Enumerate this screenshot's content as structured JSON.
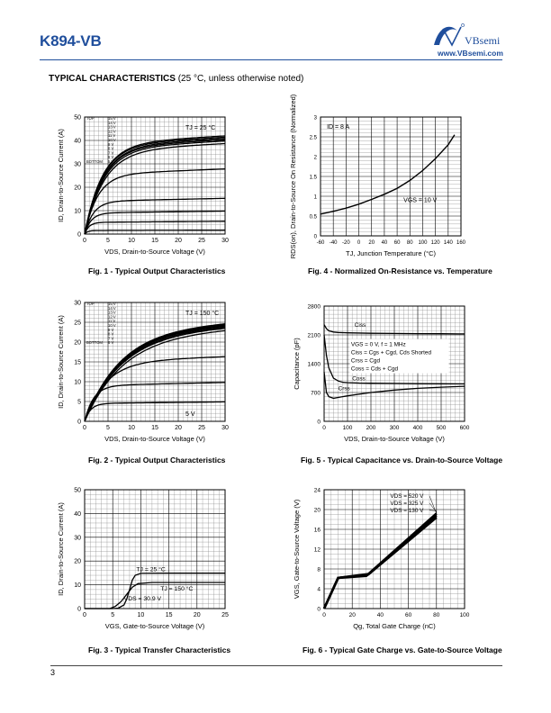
{
  "header": {
    "part_number": "K894-VB",
    "brand": "VBsemi",
    "url": "www.VBsemi.com"
  },
  "section": {
    "title": "TYPICAL CHARACTERISTICS",
    "subtitle": "(25 °C, unless otherwise noted)"
  },
  "footer": {
    "page_number": "3"
  },
  "chart_data": [
    {
      "id": "fig1",
      "type": "line",
      "caption": "Fig. 1 - Typical Output Characteristics",
      "xlabel": "VDS, Drain-to-Source Voltage (V)",
      "ylabel": "ID, Drain-to-Source Current (A)",
      "xlim": [
        0,
        30
      ],
      "ylim": [
        0,
        50
      ],
      "xticks": [
        0,
        5,
        10,
        15,
        20,
        25,
        30
      ],
      "yticks": [
        0,
        10,
        20,
        30,
        40,
        50
      ],
      "annotation": "TJ = 25 °C",
      "legend_top": "TOP",
      "legend_bottom": "BOTTOM",
      "legend_entries": [
        "15 V",
        "14 V",
        "13 V",
        "12 V",
        "11 V",
        "10 V",
        "9 V",
        "8 V",
        "7 V",
        "6 V",
        "5 V"
      ],
      "series": [
        {
          "sat": 38.5,
          "knee": 6.0
        },
        {
          "sat": 38.0,
          "knee": 6.0
        },
        {
          "sat": 37.5,
          "knee": 6.2
        },
        {
          "sat": 37.0,
          "knee": 6.2
        },
        {
          "sat": 36.5,
          "knee": 6.4
        },
        {
          "sat": 35.5,
          "knee": 6.6
        },
        {
          "sat": 25.5,
          "knee": 4.5
        },
        {
          "sat": 14.0,
          "knee": 3.0
        },
        {
          "sat": 9.0,
          "knee": 2.2
        },
        {
          "sat": 5.0,
          "knee": 1.5
        },
        {
          "sat": 1.5,
          "knee": 1.0
        }
      ],
      "grid": true
    },
    {
      "id": "fig2",
      "type": "line",
      "caption": "Fig. 2 - Typical Output Characteristics",
      "xlabel": "VDS, Drain-to-Source Voltage (V)",
      "ylabel": "ID, Drain-to-Source Current (A)",
      "xlim": [
        0,
        30
      ],
      "ylim": [
        0,
        30
      ],
      "xticks": [
        0,
        5,
        10,
        15,
        20,
        25,
        30
      ],
      "yticks": [
        0,
        5,
        10,
        15,
        20,
        25,
        30
      ],
      "annotation": "TJ = 150 °C",
      "label_5v": "5 V",
      "legend_top": "TOP",
      "legend_bottom": "BOTTOM",
      "legend_entries": [
        "15 V",
        "14 V",
        "13 V",
        "12 V",
        "11 V",
        "10 V",
        "9 V",
        "8 V",
        "7 V",
        "6 V"
      ],
      "series": [
        {
          "sat": 23.0,
          "knee": 12.0
        },
        {
          "sat": 22.8,
          "knee": 12.0
        },
        {
          "sat": 22.6,
          "knee": 12.0
        },
        {
          "sat": 22.4,
          "knee": 12.0
        },
        {
          "sat": 22.2,
          "knee": 12.2
        },
        {
          "sat": 22.0,
          "knee": 12.4
        },
        {
          "sat": 21.5,
          "knee": 12.8
        },
        {
          "sat": 15.0,
          "knee": 7.0
        },
        {
          "sat": 9.0,
          "knee": 3.0
        },
        {
          "sat": 4.5,
          "knee": 2.0
        }
      ],
      "grid": true
    },
    {
      "id": "fig3",
      "type": "line",
      "caption": "Fig. 3 - Typical Transfer Characteristics",
      "xlabel": "VGS, Gate-to-Source Voltage (V)",
      "ylabel": "ID, Drain-to-Source Current (A)",
      "xlim": [
        0,
        25
      ],
      "ylim": [
        0,
        50
      ],
      "xticks": [
        0,
        5,
        10,
        15,
        20,
        25
      ],
      "yticks": [
        0,
        10,
        20,
        30,
        40,
        50
      ],
      "labels": [
        "TJ = 25 °C",
        "TJ = 150 °C",
        "VDS = 30.9 V"
      ],
      "series": [
        {
          "name": "TJ = 25 °C",
          "x": [
            0,
            5,
            6,
            7,
            7.5,
            8,
            8.5,
            9,
            10,
            15,
            20,
            25
          ],
          "y": [
            0,
            0,
            0.2,
            1.5,
            4,
            8,
            12,
            14,
            14.8,
            14.9,
            14.9,
            14.9
          ]
        },
        {
          "name": "TJ = 150 °C",
          "x": [
            0,
            4.5,
            5.5,
            6.5,
            7.5,
            8.5,
            9.5,
            12,
            15,
            20,
            25
          ],
          "y": [
            0,
            0,
            1,
            3,
            6,
            9,
            10.5,
            11,
            11,
            11,
            11
          ]
        }
      ],
      "grid": true
    },
    {
      "id": "fig4",
      "type": "line",
      "caption": "Fig. 4 - Normalized On-Resistance vs. Temperature",
      "xlabel": "TJ, Junction Temperature (°C)",
      "ylabel": "RDS(on), Drain-to-Source On Resistance (Normalized)",
      "xlim": [
        -60,
        160
      ],
      "ylim": [
        0,
        3
      ],
      "xticks": [
        -60,
        -40,
        -20,
        0,
        20,
        40,
        60,
        80,
        100,
        120,
        140,
        160
      ],
      "yticks": [
        0,
        0.5,
        1,
        1.5,
        2,
        2.5,
        3
      ],
      "labels": [
        "ID = 8 A",
        "VGS = 10 V"
      ],
      "series": [
        {
          "x": [
            -60,
            -40,
            -20,
            0,
            20,
            40,
            60,
            80,
            100,
            120,
            140,
            150
          ],
          "y": [
            0.55,
            0.62,
            0.7,
            0.8,
            0.92,
            1.05,
            1.2,
            1.4,
            1.65,
            1.95,
            2.3,
            2.55
          ]
        }
      ],
      "grid": true
    },
    {
      "id": "fig5",
      "type": "line",
      "caption": "Fig. 5 - Typical Capacitance vs. Drain-to-Source Voltage",
      "xlabel": "VDS, Drain-to-Source Voltage (V)",
      "ylabel": "Capacitance (pF)",
      "xlim": [
        0,
        600
      ],
      "ylim": [
        0,
        2800
      ],
      "xticks": [
        0,
        100,
        200,
        300,
        400,
        500,
        600
      ],
      "yticks": [
        0,
        700,
        1400,
        2100,
        2800
      ],
      "ytick_labels": [
        "0",
        "700",
        "1400",
        "2100",
        "2800"
      ],
      "legend_lines": [
        "VGS = 0 V, f = 1 MHz",
        "Ciss = Cgs + Cgd, Cds Shorted",
        "Crss = Cgd",
        "Coss = Cds + Cgd"
      ],
      "labels": [
        "Ciss",
        "Coss",
        "Crss"
      ],
      "series": [
        {
          "name": "Ciss",
          "x": [
            0,
            10,
            20,
            40,
            60,
            100,
            200,
            300,
            400,
            500,
            600
          ],
          "y": [
            2350,
            2250,
            2200,
            2170,
            2160,
            2150,
            2140,
            2135,
            2130,
            2128,
            2125
          ]
        },
        {
          "name": "Coss",
          "x": [
            0,
            10,
            20,
            40,
            60,
            80,
            100,
            150,
            200,
            300,
            400,
            500,
            600
          ],
          "y": [
            2100,
            1600,
            1300,
            1050,
            980,
            950,
            940,
            930,
            925,
            920,
            915,
            912,
            910
          ]
        },
        {
          "name": "Crss",
          "x": [
            0,
            10,
            20,
            40,
            60,
            100,
            200,
            300,
            400,
            500,
            600
          ],
          "y": [
            1200,
            700,
            600,
            560,
            580,
            620,
            700,
            760,
            800,
            830,
            850
          ]
        }
      ],
      "grid": true
    },
    {
      "id": "fig6",
      "type": "line",
      "caption": "Fig. 6 - Typical Gate Charge vs. Gate-to-Source Voltage",
      "xlabel": "Qg, Total Gate Charge (nC)",
      "ylabel": "VGS, Gate-to-Source Voltage (V)",
      "xlim": [
        0,
        100
      ],
      "ylim": [
        0,
        24
      ],
      "xticks": [
        0,
        20,
        40,
        60,
        80,
        100
      ],
      "yticks": [
        0,
        4,
        8,
        12,
        16,
        20,
        24
      ],
      "legend_lines": [
        "VDS = 520 V",
        "VDS = 325 V",
        "VDS = 130 V"
      ],
      "series": [
        {
          "x": [
            0,
            10,
            30,
            80
          ],
          "y": [
            0,
            6.2,
            6.6,
            19.2
          ]
        },
        {
          "x": [
            0,
            10,
            31,
            80
          ],
          "y": [
            0,
            6.2,
            6.8,
            18.8
          ]
        },
        {
          "x": [
            0,
            10,
            32,
            80
          ],
          "y": [
            0,
            6.2,
            7.0,
            18.4
          ]
        }
      ],
      "grid": true
    }
  ]
}
